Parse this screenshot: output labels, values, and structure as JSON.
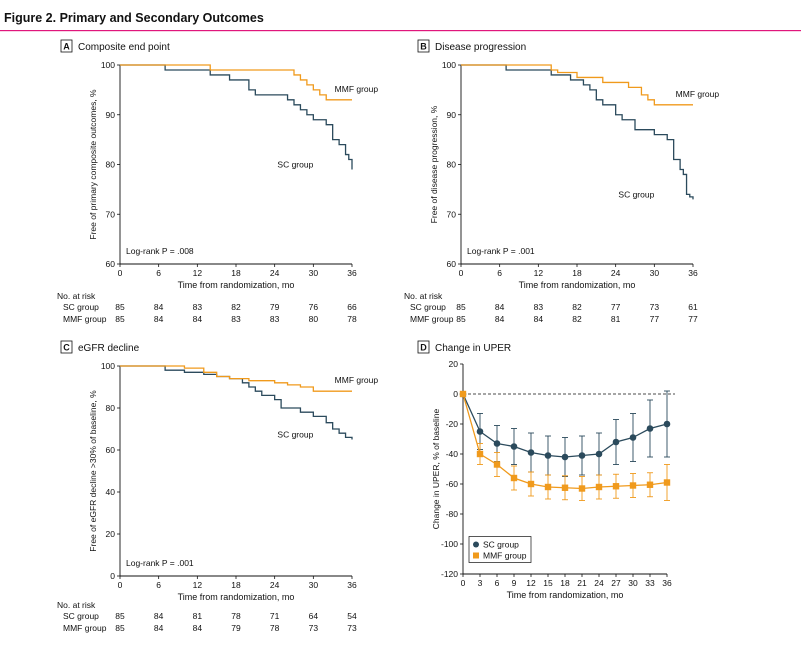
{
  "figure": {
    "title": "Figure 2. Primary and Secondary Outcomes",
    "accent_color": "#e0177c"
  },
  "colors": {
    "sc": "#2b4a5c",
    "mmf": "#f09a1c"
  },
  "risk_table": {
    "heading": "No. at risk"
  },
  "chart_data": [
    {
      "panel": "A",
      "type": "line",
      "title": "Composite end point",
      "xlabel": "Time from randomization, mo",
      "ylabel": "Free of primary composite outcomes, %",
      "xlim": [
        0,
        36
      ],
      "ylim": [
        60,
        100
      ],
      "xticks": [
        0,
        6,
        12,
        18,
        24,
        30,
        36
      ],
      "yticks": [
        60,
        70,
        80,
        90,
        100
      ],
      "annotation": "Log-rank P = .008",
      "series": [
        {
          "name": "SC group",
          "color": "#2b4a5c",
          "x": [
            0,
            7,
            14,
            17,
            20,
            21,
            26,
            27,
            28,
            29,
            30,
            32,
            33,
            34,
            35,
            35.5,
            36
          ],
          "y": [
            100,
            99,
            98,
            97,
            95,
            94,
            93,
            92,
            91,
            90,
            89,
            88,
            85,
            84,
            82,
            81,
            79
          ]
        },
        {
          "name": "MMF group",
          "color": "#f09a1c",
          "x": [
            0,
            14,
            27,
            28,
            29,
            30,
            31,
            32,
            36
          ],
          "y": [
            100,
            99,
            98,
            97,
            96,
            95,
            94,
            93,
            93
          ]
        }
      ],
      "at_risk": {
        "times": [
          0,
          6,
          12,
          18,
          24,
          30,
          36
        ],
        "rows": [
          {
            "label": "SC group",
            "values": [
              85,
              84,
              83,
              82,
              79,
              76,
              66
            ]
          },
          {
            "label": "MMF group",
            "values": [
              85,
              84,
              84,
              83,
              83,
              80,
              78
            ]
          }
        ]
      }
    },
    {
      "panel": "B",
      "type": "line",
      "title": "Disease progression",
      "xlabel": "Time from randomization, mo",
      "ylabel": "Free of disease progression, %",
      "xlim": [
        0,
        36
      ],
      "ylim": [
        60,
        100
      ],
      "xticks": [
        0,
        6,
        12,
        18,
        24,
        30,
        36
      ],
      "yticks": [
        60,
        70,
        80,
        90,
        100
      ],
      "annotation": "Log-rank P = .001",
      "series": [
        {
          "name": "SC group",
          "color": "#2b4a5c",
          "x": [
            0,
            7,
            14,
            17,
            19,
            20,
            21,
            22,
            24,
            25,
            27,
            30,
            32,
            33,
            34,
            34.5,
            35,
            35.5,
            36
          ],
          "y": [
            100,
            99,
            98,
            97,
            96,
            95,
            93,
            92,
            90,
            89,
            87,
            86,
            85,
            81,
            79,
            78,
            74,
            73.5,
            73
          ]
        },
        {
          "name": "MMF group",
          "color": "#f09a1c",
          "x": [
            0,
            14,
            15,
            18,
            22,
            26,
            28,
            29,
            30,
            36
          ],
          "y": [
            100,
            99,
            98.5,
            97.5,
            96.5,
            95.5,
            94,
            93,
            92,
            92
          ]
        }
      ],
      "at_risk": {
        "times": [
          0,
          6,
          12,
          18,
          24,
          30,
          36
        ],
        "rows": [
          {
            "label": "SC group",
            "values": [
              85,
              84,
              83,
              82,
              77,
              73,
              61
            ]
          },
          {
            "label": "MMF group",
            "values": [
              85,
              84,
              84,
              82,
              81,
              77,
              77
            ]
          }
        ]
      }
    },
    {
      "panel": "C",
      "type": "line",
      "title": "eGFR decline",
      "xlabel": "Time from randomization, mo",
      "ylabel": "Free of eGFR decline >30% of baseline, %",
      "xlim": [
        0,
        36
      ],
      "ylim": [
        0,
        100
      ],
      "xticks": [
        0,
        6,
        12,
        18,
        24,
        30,
        36
      ],
      "yticks": [
        0,
        20,
        40,
        60,
        80,
        100
      ],
      "annotation": "Log-rank P = .001",
      "series": [
        {
          "name": "SC group",
          "color": "#2b4a5c",
          "x": [
            0,
            7,
            10,
            13,
            15,
            17,
            19,
            20,
            21,
            22,
            24,
            25,
            28,
            30,
            32,
            33,
            34,
            35,
            36
          ],
          "y": [
            100,
            98,
            97,
            96,
            95,
            94,
            92,
            90,
            88,
            86,
            84,
            80,
            78,
            76,
            73,
            70,
            68,
            66,
            65
          ]
        },
        {
          "name": "MMF group",
          "color": "#f09a1c",
          "x": [
            0,
            10,
            13,
            15,
            17,
            20,
            24,
            26,
            28,
            30,
            36
          ],
          "y": [
            100,
            99,
            97,
            95,
            94,
            93,
            92,
            91,
            90,
            88,
            88
          ]
        }
      ],
      "at_risk": {
        "times": [
          0,
          6,
          12,
          18,
          24,
          30,
          36
        ],
        "rows": [
          {
            "label": "SC group",
            "values": [
              85,
              84,
              81,
              78,
              71,
              64,
              54
            ]
          },
          {
            "label": "MMF group",
            "values": [
              85,
              84,
              84,
              79,
              78,
              73,
              73
            ]
          }
        ]
      }
    },
    {
      "panel": "D",
      "type": "line",
      "title": "Change in UPER",
      "xlabel": "Time from randomization, mo",
      "ylabel": "Change in UPER, % of baseline",
      "xlim": [
        0,
        36
      ],
      "ylim": [
        -120,
        20
      ],
      "xticks": [
        0,
        3,
        6,
        9,
        12,
        15,
        18,
        21,
        24,
        27,
        30,
        33,
        36
      ],
      "yticks": [
        -120,
        -100,
        -80,
        -60,
        -40,
        -20,
        0,
        20
      ],
      "legend_position": "bottom-left",
      "reference_line": 0,
      "series": [
        {
          "name": "SC group",
          "color": "#2b4a5c",
          "marker": "circle",
          "x": [
            0,
            3,
            6,
            9,
            12,
            15,
            18,
            21,
            24,
            27,
            30,
            33,
            36
          ],
          "y": [
            0,
            -25,
            -33,
            -35,
            -39,
            -41,
            -42,
            -41,
            -40,
            -32,
            -29,
            -23,
            -20
          ],
          "err": [
            0,
            12,
            12,
            12,
            13,
            13,
            13,
            13,
            14,
            15,
            16,
            19,
            22
          ]
        },
        {
          "name": "MMF group",
          "color": "#f09a1c",
          "marker": "square",
          "x": [
            0,
            3,
            6,
            9,
            12,
            15,
            18,
            21,
            24,
            27,
            30,
            33,
            36
          ],
          "y": [
            0,
            -40,
            -47,
            -56,
            -60,
            -62,
            -62.5,
            -63,
            -62,
            -61.5,
            -61,
            -60.5,
            -59
          ],
          "err": [
            0,
            7,
            8,
            8,
            8,
            8,
            8,
            8,
            8,
            8,
            8,
            8,
            12
          ]
        }
      ]
    }
  ]
}
